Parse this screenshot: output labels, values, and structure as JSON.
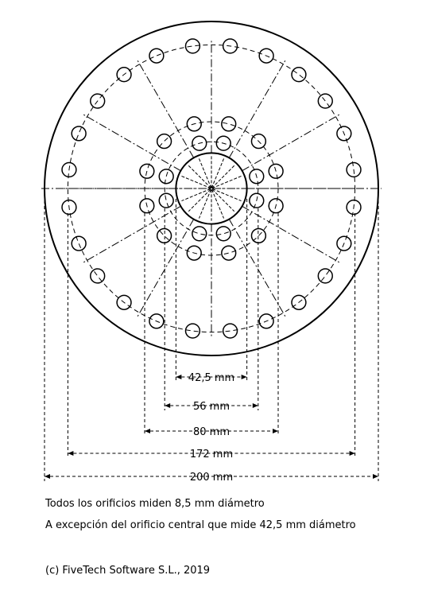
{
  "dimensions": {
    "d42": "42,5 mm",
    "d56": "56 mm",
    "d80": "80 mm",
    "d172": "172 mm",
    "d200": "200 mm"
  },
  "notes": {
    "line1": "Todos los orificios miden 8,5 mm diámetro",
    "line2": "A excepción del orificio central que mide 42,5 mm diámetro"
  },
  "copyright": "(c) FiveTech Software S.L., 2019"
}
